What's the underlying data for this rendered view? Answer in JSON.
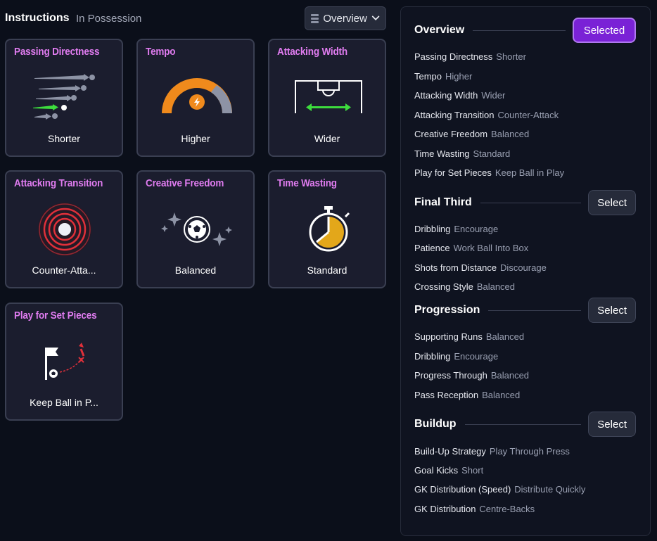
{
  "header": {
    "title": "Instructions",
    "tab": "In Possession",
    "dropdown_label": "Overview"
  },
  "cards": [
    {
      "title": "Passing Directness",
      "value": "Shorter",
      "icon": "passing-arrows-icon"
    },
    {
      "title": "Tempo",
      "value": "Higher",
      "icon": "tempo-gauge-icon"
    },
    {
      "title": "Attacking Width",
      "value": "Wider",
      "icon": "pitch-width-icon"
    },
    {
      "title": "Attacking Transition",
      "value": "Counter-Atta...",
      "icon": "target-rings-icon"
    },
    {
      "title": "Creative Freedom",
      "value": "Balanced",
      "icon": "ball-sparkle-icon"
    },
    {
      "title": "Time Wasting",
      "value": "Standard",
      "icon": "stopwatch-icon"
    },
    {
      "title": "Play for Set Pieces",
      "value": "Keep Ball in P...",
      "icon": "corner-flag-icon"
    }
  ],
  "panel": {
    "sections": [
      {
        "title": "Overview",
        "button": "Selected",
        "selected": true,
        "rows": [
          {
            "k": "Passing Directness",
            "v": "Shorter"
          },
          {
            "k": "Tempo",
            "v": "Higher"
          },
          {
            "k": "Attacking Width",
            "v": "Wider"
          },
          {
            "k": "Attacking Transition",
            "v": "Counter-Attack"
          },
          {
            "k": "Creative Freedom",
            "v": "Balanced"
          },
          {
            "k": "Time Wasting",
            "v": "Standard"
          },
          {
            "k": "Play for Set Pieces",
            "v": "Keep Ball in Play"
          }
        ]
      },
      {
        "title": "Final Third",
        "button": "Select",
        "selected": false,
        "rows": [
          {
            "k": "Dribbling",
            "v": "Encourage"
          },
          {
            "k": "Patience",
            "v": "Work Ball Into Box"
          },
          {
            "k": "Shots from Distance",
            "v": "Discourage"
          },
          {
            "k": "Crossing Style",
            "v": "Balanced"
          }
        ]
      },
      {
        "title": "Progression",
        "button": "Select",
        "selected": false,
        "rows": [
          {
            "k": "Supporting Runs",
            "v": "Balanced"
          },
          {
            "k": "Dribbling",
            "v": "Encourage"
          },
          {
            "k": "Progress Through",
            "v": "Balanced"
          },
          {
            "k": "Pass Reception",
            "v": "Balanced"
          }
        ]
      },
      {
        "title": "Buildup",
        "button": "Select",
        "selected": false,
        "rows": [
          {
            "k": "Build-Up Strategy",
            "v": "Play Through Press"
          },
          {
            "k": "Goal Kicks",
            "v": "Short"
          },
          {
            "k": "GK Distribution (Speed)",
            "v": "Distribute Quickly"
          },
          {
            "k": "GK Distribution",
            "v": "Centre-Backs"
          }
        ]
      }
    ]
  },
  "colors": {
    "accent_title": "#e07cf0",
    "selected_button": "#7a22d6",
    "tempo_orange": "#f08a1c",
    "width_green": "#3ddc3d",
    "transition_red": "#e0303a"
  }
}
